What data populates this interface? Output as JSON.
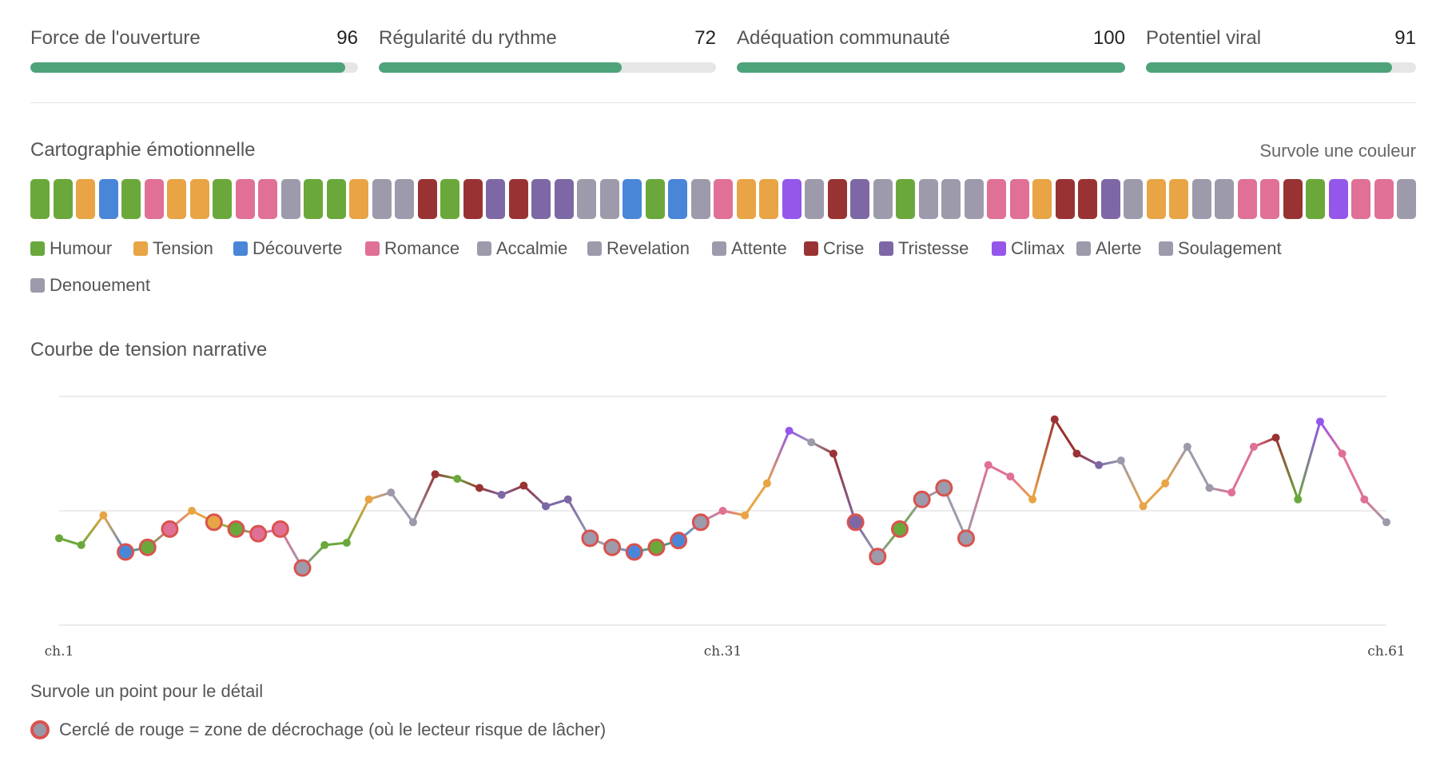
{
  "metrics": [
    {
      "label": "Force de l'ouverture",
      "value": "96",
      "pct": 96
    },
    {
      "label": "Régularité du rythme",
      "value": "72",
      "pct": 72
    },
    {
      "label": "Adéquation communauté",
      "value": "100",
      "pct": 100
    },
    {
      "label": "Potentiel viral",
      "value": "91",
      "pct": 91
    }
  ],
  "emotion_map": {
    "title": "Cartographie émotionnelle",
    "hover_hint": "Survole une couleur",
    "strip": [
      "Humour",
      "Humour",
      "Tension",
      "Découverte",
      "Humour",
      "Romance",
      "Tension",
      "Tension",
      "Humour",
      "Romance",
      "Romance",
      "Accalmie",
      "Humour",
      "Humour",
      "Tension",
      "Accalmie",
      "Accalmie",
      "Crise",
      "Humour",
      "Crise",
      "Tristesse",
      "Crise",
      "Tristesse",
      "Tristesse",
      "Accalmie",
      "Accalmie",
      "Découverte",
      "Humour",
      "Découverte",
      "Accalmie",
      "Romance",
      "Tension",
      "Tension",
      "Climax",
      "Accalmie",
      "Crise",
      "Tristesse",
      "Accalmie",
      "Humour",
      "Accalmie",
      "Accalmie",
      "Accalmie",
      "Romance",
      "Romance",
      "Tension",
      "Crise",
      "Crise",
      "Tristesse",
      "Accalmie",
      "Tension",
      "Tension",
      "Accalmie",
      "Accalmie",
      "Romance",
      "Romance",
      "Crise",
      "Humour",
      "Climax",
      "Romance",
      "Romance",
      "Accalmie"
    ],
    "legend": [
      {
        "name": "Humour",
        "color": "#6aa83b"
      },
      {
        "name": "Tension",
        "color": "#e8a445"
      },
      {
        "name": "Découverte",
        "color": "#4a86d8"
      },
      {
        "name": "Romance",
        "color": "#e07095"
      },
      {
        "name": "Accalmie",
        "color": "#9d9aab"
      },
      {
        "name": "Revelation",
        "color": "#9d9aab"
      },
      {
        "name": "Attente",
        "color": "#9d9aab"
      },
      {
        "name": "Crise",
        "color": "#993333"
      },
      {
        "name": "Tristesse",
        "color": "#7d68a5"
      },
      {
        "name": "Climax",
        "color": "#9457ea"
      },
      {
        "name": "Alerte",
        "color": "#9d9aab"
      },
      {
        "name": "Soulagement",
        "color": "#9d9aab"
      },
      {
        "name": "Denouement",
        "color": "#9d9aab"
      }
    ]
  },
  "tension_title": "Courbe de tension narrative",
  "chart_data": {
    "type": "line",
    "x_tick_labels": [
      "ch.1",
      "ch.31",
      "ch.61"
    ],
    "xlim": [
      1,
      61
    ],
    "ylim": [
      0,
      10
    ],
    "grid": true,
    "series": [
      {
        "points": [
          {
            "x": 1,
            "y": 3.8,
            "emotion": "Humour",
            "dropoff": false
          },
          {
            "x": 2,
            "y": 3.5,
            "emotion": "Humour",
            "dropoff": false
          },
          {
            "x": 3,
            "y": 4.8,
            "emotion": "Tension",
            "dropoff": false
          },
          {
            "x": 4,
            "y": 3.2,
            "emotion": "Découverte",
            "dropoff": true
          },
          {
            "x": 5,
            "y": 3.4,
            "emotion": "Humour",
            "dropoff": true
          },
          {
            "x": 6,
            "y": 4.2,
            "emotion": "Romance",
            "dropoff": true
          },
          {
            "x": 7,
            "y": 5.0,
            "emotion": "Tension",
            "dropoff": false
          },
          {
            "x": 8,
            "y": 4.5,
            "emotion": "Tension",
            "dropoff": true
          },
          {
            "x": 9,
            "y": 4.2,
            "emotion": "Humour",
            "dropoff": true
          },
          {
            "x": 10,
            "y": 4.0,
            "emotion": "Romance",
            "dropoff": true
          },
          {
            "x": 11,
            "y": 4.2,
            "emotion": "Romance",
            "dropoff": true
          },
          {
            "x": 12,
            "y": 2.5,
            "emotion": "Accalmie",
            "dropoff": true
          },
          {
            "x": 13,
            "y": 3.5,
            "emotion": "Humour",
            "dropoff": false
          },
          {
            "x": 14,
            "y": 3.6,
            "emotion": "Humour",
            "dropoff": false
          },
          {
            "x": 15,
            "y": 5.5,
            "emotion": "Tension",
            "dropoff": false
          },
          {
            "x": 16,
            "y": 5.8,
            "emotion": "Accalmie",
            "dropoff": false
          },
          {
            "x": 17,
            "y": 4.5,
            "emotion": "Accalmie",
            "dropoff": false
          },
          {
            "x": 18,
            "y": 6.6,
            "emotion": "Crise",
            "dropoff": false
          },
          {
            "x": 19,
            "y": 6.4,
            "emotion": "Humour",
            "dropoff": false
          },
          {
            "x": 20,
            "y": 6.0,
            "emotion": "Crise",
            "dropoff": false
          },
          {
            "x": 21,
            "y": 5.7,
            "emotion": "Tristesse",
            "dropoff": false
          },
          {
            "x": 22,
            "y": 6.1,
            "emotion": "Crise",
            "dropoff": false
          },
          {
            "x": 23,
            "y": 5.2,
            "emotion": "Tristesse",
            "dropoff": false
          },
          {
            "x": 24,
            "y": 5.5,
            "emotion": "Tristesse",
            "dropoff": false
          },
          {
            "x": 25,
            "y": 3.8,
            "emotion": "Accalmie",
            "dropoff": true
          },
          {
            "x": 26,
            "y": 3.4,
            "emotion": "Accalmie",
            "dropoff": true
          },
          {
            "x": 27,
            "y": 3.2,
            "emotion": "Découverte",
            "dropoff": true
          },
          {
            "x": 28,
            "y": 3.4,
            "emotion": "Humour",
            "dropoff": true
          },
          {
            "x": 29,
            "y": 3.7,
            "emotion": "Découverte",
            "dropoff": true
          },
          {
            "x": 30,
            "y": 4.5,
            "emotion": "Accalmie",
            "dropoff": true
          },
          {
            "x": 31,
            "y": 5.0,
            "emotion": "Romance",
            "dropoff": false
          },
          {
            "x": 32,
            "y": 4.8,
            "emotion": "Tension",
            "dropoff": false
          },
          {
            "x": 33,
            "y": 6.2,
            "emotion": "Tension",
            "dropoff": false
          },
          {
            "x": 34,
            "y": 8.5,
            "emotion": "Climax",
            "dropoff": false
          },
          {
            "x": 35,
            "y": 8.0,
            "emotion": "Accalmie",
            "dropoff": false
          },
          {
            "x": 36,
            "y": 7.5,
            "emotion": "Crise",
            "dropoff": false
          },
          {
            "x": 37,
            "y": 4.5,
            "emotion": "Tristesse",
            "dropoff": true
          },
          {
            "x": 38,
            "y": 3.0,
            "emotion": "Accalmie",
            "dropoff": true
          },
          {
            "x": 39,
            "y": 4.2,
            "emotion": "Humour",
            "dropoff": true
          },
          {
            "x": 40,
            "y": 5.5,
            "emotion": "Accalmie",
            "dropoff": true
          },
          {
            "x": 41,
            "y": 6.0,
            "emotion": "Accalmie",
            "dropoff": true
          },
          {
            "x": 42,
            "y": 3.8,
            "emotion": "Accalmie",
            "dropoff": true
          },
          {
            "x": 43,
            "y": 7.0,
            "emotion": "Romance",
            "dropoff": false
          },
          {
            "x": 44,
            "y": 6.5,
            "emotion": "Romance",
            "dropoff": false
          },
          {
            "x": 45,
            "y": 5.5,
            "emotion": "Tension",
            "dropoff": false
          },
          {
            "x": 46,
            "y": 9.0,
            "emotion": "Crise",
            "dropoff": false
          },
          {
            "x": 47,
            "y": 7.5,
            "emotion": "Crise",
            "dropoff": false
          },
          {
            "x": 48,
            "y": 7.0,
            "emotion": "Tristesse",
            "dropoff": false
          },
          {
            "x": 49,
            "y": 7.2,
            "emotion": "Accalmie",
            "dropoff": false
          },
          {
            "x": 50,
            "y": 5.2,
            "emotion": "Tension",
            "dropoff": false
          },
          {
            "x": 51,
            "y": 6.2,
            "emotion": "Tension",
            "dropoff": false
          },
          {
            "x": 52,
            "y": 7.8,
            "emotion": "Accalmie",
            "dropoff": false
          },
          {
            "x": 53,
            "y": 6.0,
            "emotion": "Accalmie",
            "dropoff": false
          },
          {
            "x": 54,
            "y": 5.8,
            "emotion": "Romance",
            "dropoff": false
          },
          {
            "x": 55,
            "y": 7.8,
            "emotion": "Romance",
            "dropoff": false
          },
          {
            "x": 56,
            "y": 8.2,
            "emotion": "Crise",
            "dropoff": false
          },
          {
            "x": 57,
            "y": 5.5,
            "emotion": "Humour",
            "dropoff": false
          },
          {
            "x": 58,
            "y": 8.9,
            "emotion": "Climax",
            "dropoff": false
          },
          {
            "x": 59,
            "y": 7.5,
            "emotion": "Romance",
            "dropoff": false
          },
          {
            "x": 60,
            "y": 5.5,
            "emotion": "Romance",
            "dropoff": false
          },
          {
            "x": 61,
            "y": 4.5,
            "emotion": "Accalmie",
            "dropoff": false
          }
        ]
      }
    ]
  },
  "hover_point_hint": "Survole un point pour le détail",
  "dropoff_key": "Cerclé de rouge = zone de décrochage (où le lecteur risque de lâcher)",
  "colors": {
    "progress": "#4ea37b",
    "dropoff_ring": "#d9534f",
    "grid": "#e6e6e6"
  }
}
